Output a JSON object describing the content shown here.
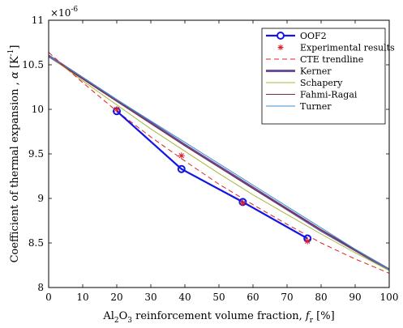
{
  "chart_data": {
    "type": "line",
    "title": "",
    "xlabel": {
      "prefix": "Al",
      "sub1": "2",
      "mid": "O",
      "sub2": "3",
      "suffix": " reinforcement volume fraction, ",
      "var": "f",
      "var_sub": "r",
      "unit": " [%]"
    },
    "ylabel": {
      "prefix": "Coefficient of thermal expansion , ",
      "var": "α",
      "unit_open": " [K",
      "unit_sup": "-1",
      "unit_close": "]"
    },
    "y_exponent": {
      "base": "×10",
      "sup": "-6"
    },
    "xlim": [
      0,
      100
    ],
    "ylim": [
      8,
      11
    ],
    "x_ticks": [
      "0",
      "10",
      "20",
      "30",
      "40",
      "50",
      "60",
      "70",
      "80",
      "90",
      "100"
    ],
    "y_ticks": [
      "8",
      "8.5",
      "9",
      "9.5",
      "10",
      "10.5",
      "11"
    ],
    "grid": false,
    "legend_position": "top-right",
    "series": [
      {
        "name": "OOF2",
        "style": "line-circle",
        "color": "#1414e6",
        "x": [
          20,
          39,
          57,
          76
        ],
        "y": [
          9.98,
          9.33,
          8.96,
          8.55
        ]
      },
      {
        "name": "Experimental results",
        "style": "star",
        "color": "#e02020",
        "x": [
          20,
          39,
          57,
          76
        ],
        "y": [
          10.0,
          9.48,
          8.95,
          8.52
        ]
      },
      {
        "name": "CTE trendline",
        "style": "dashed",
        "color": "#e02020",
        "x": [
          0,
          10,
          20,
          30,
          40,
          50,
          60,
          70,
          80,
          90,
          100
        ],
        "y": [
          10.64,
          10.3,
          9.98,
          9.69,
          9.42,
          9.16,
          8.93,
          8.71,
          8.5,
          8.32,
          8.16
        ]
      },
      {
        "name": "Kerner",
        "style": "line-thick",
        "color": "#6a4f9e",
        "x": [
          0,
          10,
          20,
          30,
          40,
          50,
          60,
          70,
          80,
          90,
          100
        ],
        "y": [
          10.6,
          10.35,
          10.1,
          9.85,
          9.6,
          9.36,
          9.12,
          8.88,
          8.64,
          8.42,
          8.2
        ]
      },
      {
        "name": "Schapery",
        "style": "line",
        "color": "#a9b83a",
        "x": [
          0,
          10,
          20,
          30,
          40,
          50,
          60,
          70,
          80,
          90,
          100
        ],
        "y": [
          10.6,
          10.32,
          10.05,
          9.78,
          9.53,
          9.28,
          9.04,
          8.82,
          8.6,
          8.39,
          8.19
        ]
      },
      {
        "name": "Fahmi-Ragai",
        "style": "line",
        "color": "#7a2c3c",
        "x": [
          0,
          10,
          20,
          30,
          40,
          50,
          60,
          70,
          80,
          90,
          100
        ],
        "y": [
          10.6,
          10.34,
          10.09,
          9.84,
          9.59,
          9.35,
          9.11,
          8.88,
          8.65,
          8.42,
          8.2
        ]
      },
      {
        "name": "Turner",
        "style": "line",
        "color": "#3a8fd0",
        "x": [
          0,
          10,
          20,
          30,
          40,
          50,
          60,
          70,
          80,
          90,
          100
        ],
        "y": [
          10.6,
          10.36,
          10.11,
          9.87,
          9.63,
          9.39,
          9.15,
          8.91,
          8.67,
          8.43,
          8.2
        ]
      }
    ]
  }
}
